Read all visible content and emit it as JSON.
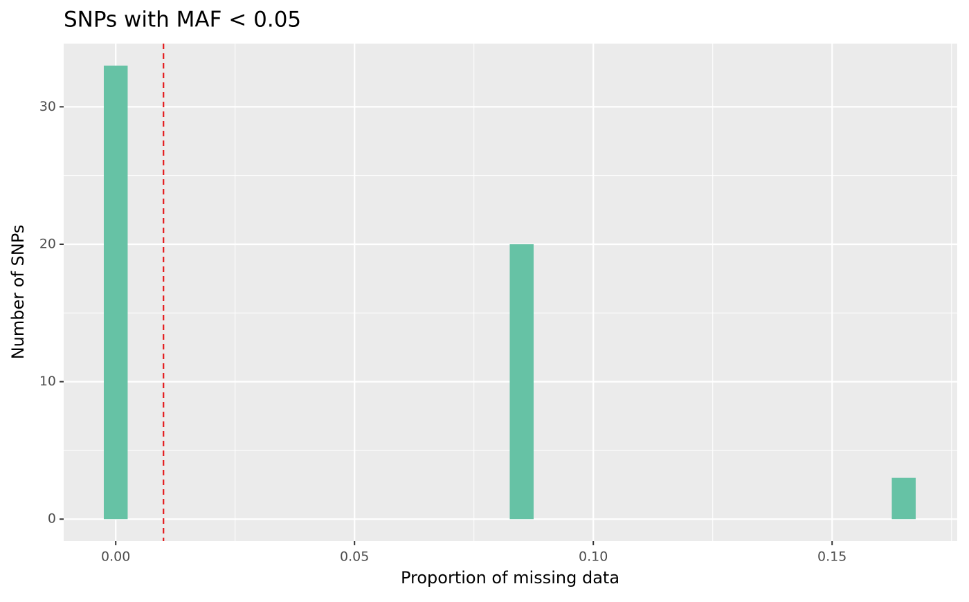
{
  "chart_data": {
    "type": "histogram",
    "title": "SNPs with MAF < 0.05",
    "x_label": "Proportion of missing data",
    "y_label": "Number of SNPs",
    "bins": [
      -0.0025,
      0.0025,
      0.0075,
      0.0125,
      0.0175,
      0.0225,
      0.0275,
      0.0325,
      0.0375,
      0.0425,
      0.0475,
      0.0525,
      0.0575,
      0.0625,
      0.0675,
      0.0725,
      0.0775,
      0.0825,
      0.0875,
      0.0925,
      0.0975,
      0.1025,
      0.1075,
      0.1125,
      0.1175,
      0.1225,
      0.1275,
      0.1325,
      0.1375,
      0.1425,
      0.1475,
      0.1525,
      0.1575,
      0.1625,
      0.1675
    ],
    "values": [
      33,
      0,
      0,
      0,
      0,
      0,
      0,
      0,
      0,
      0,
      0,
      0,
      0,
      0,
      0,
      0,
      0,
      20,
      0,
      0,
      0,
      0,
      0,
      0,
      0,
      0,
      0,
      0,
      0,
      0,
      0,
      0,
      0,
      3
    ],
    "color": "#66c2a5",
    "vline": 0.01,
    "vline_color": "#e41a1c",
    "xlim": [
      -0.0109,
      0.1762
    ],
    "ylim": [
      -1.6,
      34.6
    ],
    "xticks": [
      {
        "value": 0,
        "label": "0.00"
      },
      {
        "value": 0.05,
        "label": "0.05"
      },
      {
        "value": 0.1,
        "label": "0.10"
      },
      {
        "value": 0.15,
        "label": "0.15"
      }
    ],
    "yticks": [
      0,
      10,
      20,
      30
    ],
    "grid": true
  }
}
